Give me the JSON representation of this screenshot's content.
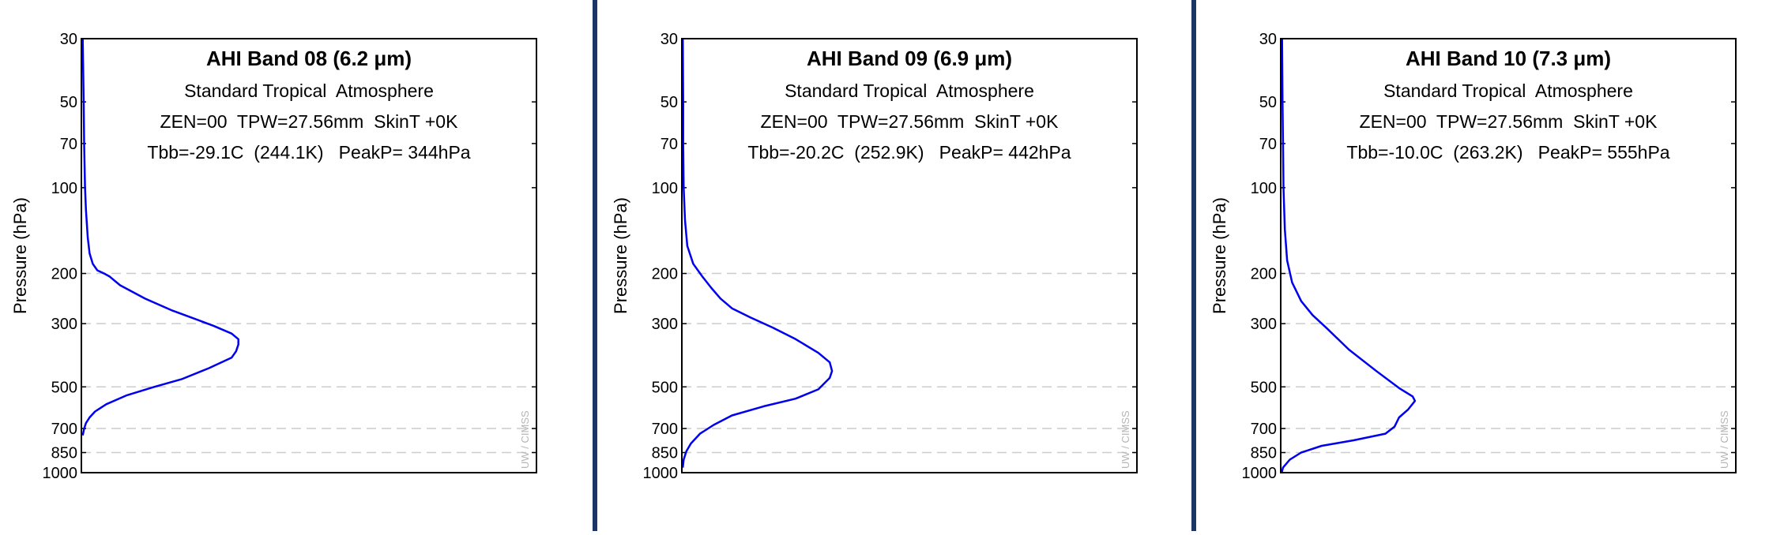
{
  "chart_data": [
    {
      "type": "line",
      "title": "AHI Band 08 (6.2 μm)",
      "subtitle_lines": [
        "Standard Tropical  Atmosphere",
        "ZEN=00  TPW=27.56mm  SkinT +0K",
        "Tbb=-29.1C  (244.1K)   PeakP= 344hPa"
      ],
      "xlabel": "",
      "ylabel": "Pressure (hPa)",
      "y_scale": "log",
      "y_inverted": true,
      "ylim": [
        30,
        1000
      ],
      "yticks": [
        30,
        50,
        70,
        100,
        200,
        300,
        500,
        700,
        850,
        1000
      ],
      "grid_lines_at": [
        200,
        300,
        500,
        700,
        850,
        1000
      ],
      "xlim": [
        0,
        1
      ],
      "watermark": "UW / CIMSS",
      "color": "#0000ee",
      "series": [
        {
          "x": [
            0.003,
            0.005,
            0.006,
            0.008,
            0.01,
            0.014,
            0.018,
            0.025,
            0.035,
            0.05,
            0.062,
            0.085,
            0.14,
            0.2,
            0.24,
            0.29,
            0.33,
            0.345,
            0.345,
            0.34,
            0.33,
            0.28,
            0.22,
            0.16,
            0.1,
            0.055,
            0.03,
            0.018,
            0.01,
            0.006,
            0.003
          ],
          "y": [
            30,
            50,
            70,
            100,
            120,
            150,
            170,
            185,
            195,
            200,
            205,
            220,
            245,
            270,
            285,
            305,
            325,
            340,
            355,
            375,
            395,
            430,
            470,
            500,
            535,
            575,
            610,
            640,
            670,
            700,
            740
          ]
        }
      ]
    },
    {
      "type": "line",
      "title": "AHI Band 09 (6.9 μm)",
      "subtitle_lines": [
        "Standard Tropical  Atmosphere",
        "ZEN=00  TPW=27.56mm  SkinT +0K",
        "Tbb=-20.2C  (252.9K)   PeakP= 442hPa"
      ],
      "xlabel": "",
      "ylabel": "Pressure (hPa)",
      "y_scale": "log",
      "y_inverted": true,
      "ylim": [
        30,
        1000
      ],
      "yticks": [
        30,
        50,
        70,
        100,
        200,
        300,
        500,
        700,
        850,
        1000
      ],
      "grid_lines_at": [
        200,
        300,
        500,
        700,
        850,
        1000
      ],
      "xlim": [
        0,
        1
      ],
      "watermark": "UW / CIMSS",
      "color": "#0000ee",
      "series": [
        {
          "x": [
            0.002,
            0.003,
            0.003,
            0.004,
            0.007,
            0.012,
            0.025,
            0.045,
            0.065,
            0.085,
            0.11,
            0.15,
            0.2,
            0.25,
            0.3,
            0.325,
            0.33,
            0.325,
            0.3,
            0.25,
            0.18,
            0.11,
            0.07,
            0.04,
            0.02,
            0.01,
            0.004,
            0.002
          ],
          "y": [
            30,
            50,
            70,
            100,
            130,
            160,
            185,
            205,
            225,
            245,
            265,
            285,
            310,
            340,
            380,
            410,
            440,
            465,
            510,
            550,
            585,
            630,
            680,
            730,
            790,
            840,
            900,
            960
          ]
        }
      ]
    },
    {
      "type": "line",
      "title": "AHI Band 10 (7.3 μm)",
      "subtitle_lines": [
        "Standard Tropical  Atmosphere",
        "ZEN=00  TPW=27.56mm  SkinT +0K",
        "Tbb=-10.0C  (263.2K)   PeakP= 555hPa"
      ],
      "xlabel": "",
      "ylabel": "Pressure (hPa)",
      "y_scale": "log",
      "y_inverted": true,
      "ylim": [
        30,
        1000
      ],
      "yticks": [
        30,
        50,
        70,
        100,
        200,
        300,
        500,
        700,
        850,
        1000
      ],
      "grid_lines_at": [
        200,
        300,
        500,
        700,
        850,
        1000
      ],
      "xlim": [
        0,
        1
      ],
      "watermark": "UW / CIMSS",
      "color": "#0000ee",
      "series": [
        {
          "x": [
            0.003,
            0.004,
            0.005,
            0.006,
            0.009,
            0.014,
            0.025,
            0.045,
            0.07,
            0.1,
            0.15,
            0.21,
            0.26,
            0.29,
            0.295,
            0.28,
            0.26,
            0.25,
            0.23,
            0.16,
            0.09,
            0.045,
            0.02,
            0.005,
            0.002
          ],
          "y": [
            30,
            50,
            70,
            100,
            140,
            180,
            215,
            250,
            280,
            310,
            370,
            440,
            505,
            540,
            560,
            600,
            640,
            690,
            730,
            770,
            805,
            850,
            900,
            960,
            1000
          ]
        }
      ]
    }
  ]
}
